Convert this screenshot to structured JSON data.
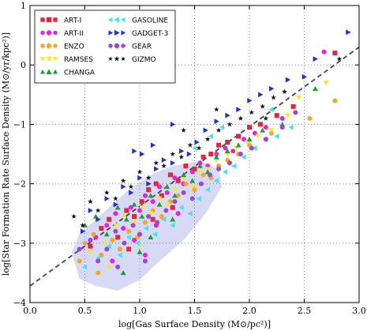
{
  "chart_data": {
    "type": "scatter",
    "xlabel": "log[Gas Surface Density (M⊙/pc²)]",
    "ylabel": "log[Star Formation Rate Surface Density (M⊙/yr/kpc²)]",
    "xlim": [
      0.0,
      3.0
    ],
    "ylim": [
      -4,
      1
    ],
    "xticks": [
      "0.0",
      "0.5",
      "1.0",
      "1.5",
      "2.0",
      "2.5",
      "3.0"
    ],
    "yticks": [
      "−4",
      "−3",
      "−2",
      "−1",
      "0",
      "1"
    ],
    "grid": true,
    "legend_position": "top-left",
    "fit_line": {
      "style": "dashed",
      "color": "#444444",
      "x": [
        0.0,
        3.0
      ],
      "y": [
        -3.72,
        0.3
      ]
    },
    "shaded_region": {
      "color": "#c9cdf0",
      "description_points": [
        [
          0.38,
          -3.15
        ],
        [
          0.45,
          -3.6
        ],
        [
          0.6,
          -3.72
        ],
        [
          0.8,
          -3.8
        ],
        [
          1.0,
          -3.62
        ],
        [
          1.15,
          -3.35
        ],
        [
          1.4,
          -2.95
        ],
        [
          1.6,
          -2.5
        ],
        [
          1.75,
          -2.05
        ],
        [
          1.72,
          -1.75
        ],
        [
          1.55,
          -1.62
        ],
        [
          1.3,
          -1.7
        ],
        [
          1.1,
          -1.85
        ],
        [
          0.9,
          -2.1
        ],
        [
          0.75,
          -2.35
        ],
        [
          0.6,
          -2.6
        ],
        [
          0.45,
          -2.85
        ]
      ]
    },
    "series": [
      {
        "name": "ART-I",
        "marker": "square",
        "color": "#e8243a",
        "points": [
          [
            0.65,
            -2.75
          ],
          [
            0.72,
            -2.6
          ],
          [
            0.8,
            -2.9
          ],
          [
            0.88,
            -2.45
          ],
          [
            0.95,
            -2.55
          ],
          [
            1.02,
            -2.3
          ],
          [
            1.08,
            -2.1
          ],
          [
            1.15,
            -2.0
          ],
          [
            1.2,
            -2.2
          ],
          [
            1.28,
            -1.85
          ],
          [
            1.35,
            -1.95
          ],
          [
            1.42,
            -1.7
          ],
          [
            1.5,
            -1.75
          ],
          [
            1.58,
            -1.55
          ],
          [
            1.65,
            -1.5
          ],
          [
            1.72,
            -1.35
          ],
          [
            1.8,
            -1.3
          ],
          [
            1.9,
            -1.2
          ],
          [
            2.0,
            -1.05
          ],
          [
            2.1,
            -1.0
          ],
          [
            2.25,
            -0.85
          ],
          [
            2.4,
            -0.7
          ],
          [
            2.78,
            0.2
          ],
          [
            0.55,
            -3.05
          ],
          [
            0.9,
            -3.1
          ],
          [
            1.12,
            -2.6
          ],
          [
            1.3,
            -2.4
          ]
        ]
      },
      {
        "name": "ART-II",
        "marker": "circle",
        "color": "#e81ee0",
        "points": [
          [
            0.6,
            -2.9
          ],
          [
            0.7,
            -2.7
          ],
          [
            0.78,
            -2.5
          ],
          [
            0.85,
            -2.75
          ],
          [
            0.92,
            -2.4
          ],
          [
            1.0,
            -2.45
          ],
          [
            1.05,
            -2.2
          ],
          [
            1.12,
            -2.3
          ],
          [
            1.18,
            -2.05
          ],
          [
            1.25,
            -2.15
          ],
          [
            1.32,
            -1.9
          ],
          [
            1.4,
            -2.0
          ],
          [
            1.48,
            -1.8
          ],
          [
            1.55,
            -1.65
          ],
          [
            1.62,
            -1.7
          ],
          [
            1.7,
            -1.5
          ],
          [
            1.78,
            -1.4
          ],
          [
            1.85,
            -1.45
          ],
          [
            1.95,
            -1.25
          ],
          [
            2.05,
            -1.15
          ],
          [
            2.15,
            -1.05
          ],
          [
            2.3,
            -0.9
          ],
          [
            2.68,
            0.22
          ],
          [
            0.75,
            -3.3
          ],
          [
            0.95,
            -2.95
          ],
          [
            1.15,
            -2.7
          ],
          [
            1.35,
            -2.5
          ],
          [
            1.05,
            -3.2
          ]
        ]
      },
      {
        "name": "ENZO",
        "marker": "circle",
        "color": "#f5a626",
        "points": [
          [
            0.5,
            -3.0
          ],
          [
            0.58,
            -2.85
          ],
          [
            0.65,
            -3.2
          ],
          [
            0.75,
            -2.95
          ],
          [
            0.82,
            -3.1
          ],
          [
            0.9,
            -2.8
          ],
          [
            0.98,
            -2.9
          ],
          [
            1.05,
            -2.65
          ],
          [
            1.12,
            -2.45
          ],
          [
            1.2,
            -2.55
          ],
          [
            1.28,
            -2.3
          ],
          [
            1.35,
            -2.2
          ],
          [
            1.42,
            -2.0
          ],
          [
            1.5,
            -2.1
          ],
          [
            1.58,
            -1.85
          ],
          [
            1.65,
            -1.9
          ],
          [
            1.72,
            -1.7
          ],
          [
            1.8,
            -1.6
          ],
          [
            1.9,
            -1.5
          ],
          [
            2.0,
            -1.35
          ],
          [
            2.2,
            -1.15
          ],
          [
            2.55,
            -0.9
          ],
          [
            2.78,
            -0.6
          ],
          [
            0.45,
            -3.3
          ],
          [
            0.62,
            -3.5
          ]
        ]
      },
      {
        "name": "RAMSES",
        "marker": "triangle-down",
        "color": "#f8e630",
        "points": [
          [
            0.55,
            -3.15
          ],
          [
            0.68,
            -3.0
          ],
          [
            0.78,
            -2.7
          ],
          [
            0.85,
            -2.55
          ],
          [
            0.95,
            -2.65
          ],
          [
            1.02,
            -2.4
          ],
          [
            1.1,
            -2.5
          ],
          [
            1.18,
            -2.25
          ],
          [
            1.25,
            -2.35
          ],
          [
            1.32,
            -2.1
          ],
          [
            1.4,
            -1.9
          ],
          [
            1.48,
            -2.05
          ],
          [
            1.55,
            -1.8
          ],
          [
            1.62,
            -1.75
          ],
          [
            1.7,
            -1.6
          ],
          [
            1.8,
            -1.5
          ],
          [
            1.88,
            -1.4
          ],
          [
            1.98,
            -1.3
          ],
          [
            2.08,
            -1.2
          ],
          [
            2.2,
            -1.1
          ],
          [
            2.35,
            -0.85
          ],
          [
            2.45,
            -0.55
          ],
          [
            2.7,
            -0.3
          ],
          [
            1.0,
            -3.05
          ],
          [
            0.72,
            -3.4
          ]
        ]
      },
      {
        "name": "CHANGA",
        "marker": "triangle-up",
        "color": "#1e9e3a",
        "points": [
          [
            0.5,
            -2.7
          ],
          [
            0.6,
            -2.55
          ],
          [
            0.7,
            -2.85
          ],
          [
            0.8,
            -2.4
          ],
          [
            0.88,
            -2.6
          ],
          [
            0.95,
            -2.35
          ],
          [
            1.02,
            -2.55
          ],
          [
            1.1,
            -2.2
          ],
          [
            1.18,
            -2.35
          ],
          [
            1.25,
            -2.05
          ],
          [
            1.32,
            -2.2
          ],
          [
            1.4,
            -1.85
          ],
          [
            1.48,
            -1.95
          ],
          [
            1.55,
            -1.7
          ],
          [
            1.62,
            -1.8
          ],
          [
            1.7,
            -1.55
          ],
          [
            1.8,
            -1.45
          ],
          [
            1.9,
            -1.35
          ],
          [
            2.0,
            -1.25
          ],
          [
            2.12,
            -1.1
          ],
          [
            2.3,
            -1.0
          ],
          [
            2.6,
            -0.4
          ],
          [
            1.0,
            -3.15
          ],
          [
            0.85,
            -3.5
          ],
          [
            1.1,
            -2.9
          ],
          [
            1.3,
            -2.6
          ]
        ]
      },
      {
        "name": "GASOLINE",
        "marker": "triangle-left",
        "color": "#3ee6f0",
        "points": [
          [
            0.5,
            -3.4
          ],
          [
            0.62,
            -3.25
          ],
          [
            0.72,
            -3.05
          ],
          [
            0.82,
            -3.2
          ],
          [
            0.9,
            -2.9
          ],
          [
            0.98,
            -3.0
          ],
          [
            1.06,
            -2.75
          ],
          [
            1.14,
            -2.85
          ],
          [
            1.22,
            -2.6
          ],
          [
            1.3,
            -2.7
          ],
          [
            1.38,
            -2.4
          ],
          [
            1.46,
            -2.5
          ],
          [
            1.54,
            -2.25
          ],
          [
            1.62,
            -2.1
          ],
          [
            1.7,
            -1.95
          ],
          [
            1.78,
            -1.8
          ],
          [
            1.86,
            -1.7
          ],
          [
            1.95,
            -1.55
          ],
          [
            2.05,
            -1.4
          ],
          [
            2.15,
            -1.25
          ],
          [
            2.25,
            -1.2
          ],
          [
            2.38,
            -1.05
          ],
          [
            1.5,
            -1.4
          ],
          [
            1.65,
            -1.2
          ],
          [
            1.75,
            -1.05
          ],
          [
            2.2,
            -0.75
          ]
        ]
      },
      {
        "name": "GADGET-3",
        "marker": "triangle-right",
        "color": "#1e2ee0",
        "points": [
          [
            0.48,
            -2.8
          ],
          [
            0.55,
            -2.45
          ],
          [
            0.62,
            -2.6
          ],
          [
            0.7,
            -2.25
          ],
          [
            0.78,
            -2.35
          ],
          [
            0.85,
            -2.05
          ],
          [
            0.92,
            -2.15
          ],
          [
            1.0,
            -1.9
          ],
          [
            1.08,
            -2.0
          ],
          [
            1.15,
            -1.75
          ],
          [
            1.22,
            -1.6
          ],
          [
            1.3,
            -1.65
          ],
          [
            1.38,
            -1.45
          ],
          [
            1.45,
            -1.5
          ],
          [
            1.52,
            -1.3
          ],
          [
            1.6,
            -1.1
          ],
          [
            1.7,
            -0.95
          ],
          [
            1.8,
            -0.85
          ],
          [
            1.9,
            -0.75
          ],
          [
            2.0,
            -0.6
          ],
          [
            2.1,
            -0.5
          ],
          [
            2.2,
            -0.4
          ],
          [
            2.35,
            -0.25
          ],
          [
            2.5,
            -0.2
          ],
          [
            2.6,
            0.1
          ],
          [
            2.9,
            0.55
          ],
          [
            1.12,
            -1.35
          ],
          [
            1.02,
            -1.5
          ],
          [
            0.95,
            -1.45
          ],
          [
            1.3,
            -1.0
          ]
        ]
      },
      {
        "name": "GEAR",
        "marker": "circle",
        "color": "#9a46d6",
        "points": [
          [
            0.45,
            -3.1
          ],
          [
            0.55,
            -2.95
          ],
          [
            0.62,
            -3.3
          ],
          [
            0.7,
            -3.1
          ],
          [
            0.78,
            -2.8
          ],
          [
            0.86,
            -3.0
          ],
          [
            0.94,
            -2.7
          ],
          [
            1.0,
            -2.85
          ],
          [
            1.08,
            -2.55
          ],
          [
            1.16,
            -2.65
          ],
          [
            1.24,
            -2.45
          ],
          [
            1.32,
            -2.3
          ],
          [
            1.4,
            -2.15
          ],
          [
            1.48,
            -2.25
          ],
          [
            1.56,
            -2.0
          ],
          [
            1.64,
            -1.85
          ],
          [
            1.72,
            -1.75
          ],
          [
            1.82,
            -1.65
          ],
          [
            1.92,
            -1.5
          ],
          [
            2.02,
            -1.4
          ],
          [
            2.15,
            -1.25
          ],
          [
            2.3,
            -1.05
          ],
          [
            2.42,
            -0.8
          ],
          [
            0.8,
            -3.4
          ],
          [
            1.05,
            -3.3
          ]
        ]
      },
      {
        "name": "GIZMO",
        "marker": "star",
        "color": "#111111",
        "points": [
          [
            0.4,
            -2.55
          ],
          [
            0.48,
            -2.7
          ],
          [
            0.55,
            -2.3
          ],
          [
            0.62,
            -2.45
          ],
          [
            0.7,
            -2.15
          ],
          [
            0.78,
            -2.25
          ],
          [
            0.85,
            -1.95
          ],
          [
            0.92,
            -2.05
          ],
          [
            1.0,
            -1.8
          ],
          [
            1.08,
            -1.9
          ],
          [
            1.15,
            -1.65
          ],
          [
            1.22,
            -1.7
          ],
          [
            1.3,
            -1.5
          ],
          [
            1.38,
            -1.55
          ],
          [
            1.46,
            -1.35
          ],
          [
            1.54,
            -1.4
          ],
          [
            1.62,
            -1.25
          ],
          [
            1.72,
            -1.1
          ],
          [
            1.82,
            -1.0
          ],
          [
            1.92,
            -0.9
          ],
          [
            2.02,
            -0.8
          ],
          [
            2.12,
            -0.7
          ],
          [
            2.22,
            -0.55
          ],
          [
            2.32,
            -0.45
          ],
          [
            2.82,
            0.1
          ],
          [
            2.15,
            -0.9
          ],
          [
            1.7,
            -0.75
          ],
          [
            1.4,
            -1.1
          ]
        ]
      }
    ]
  }
}
